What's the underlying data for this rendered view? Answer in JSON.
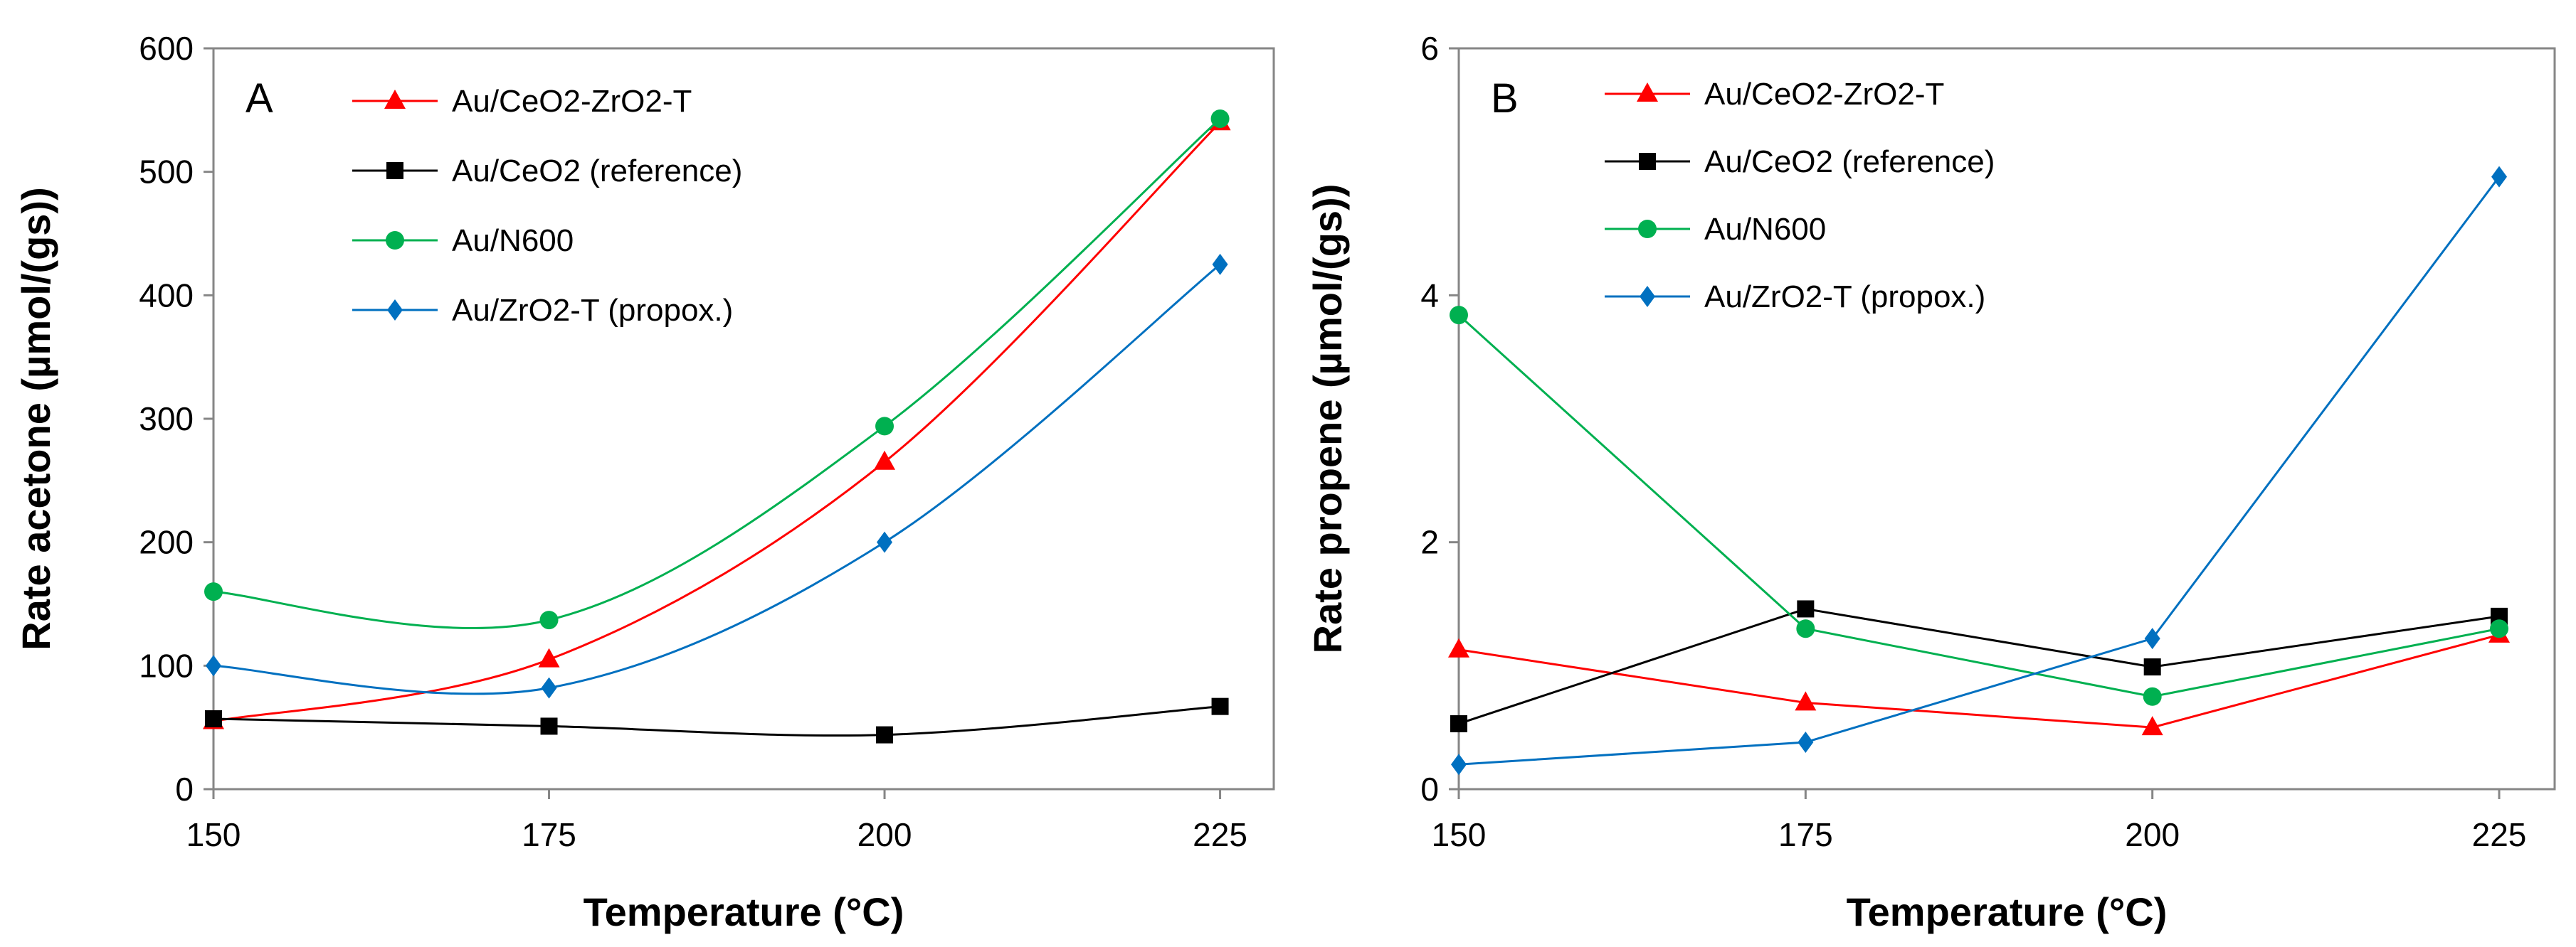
{
  "chart_data": [
    {
      "type": "line",
      "panel_label": "A",
      "xlabel": "Temperature (°C)",
      "ylabel": "Rate acetone (µmol/(gs))",
      "x": [
        150,
        175,
        200,
        225
      ],
      "x_tick_labels": [
        "150",
        "175",
        "200",
        "225"
      ],
      "xlim": [
        150,
        229
      ],
      "ylim": [
        0,
        600
      ],
      "y_ticks": [
        0,
        100,
        200,
        300,
        400,
        500,
        600
      ],
      "y_tick_labels": [
        "0",
        "100",
        "200",
        "300",
        "400",
        "500",
        "600"
      ],
      "legend_position": "top-left",
      "smooth": true,
      "series": [
        {
          "name": "Au/CeO2-ZrO2-T",
          "color": "#ff0000",
          "marker": "triangle",
          "values": [
            55,
            105,
            265,
            540
          ]
        },
        {
          "name": "Au/CeO2 (reference)",
          "color": "#000000",
          "marker": "square",
          "values": [
            57,
            51,
            44,
            67
          ]
        },
        {
          "name": "Au/N600",
          "color": "#00b050",
          "marker": "circle",
          "values": [
            160,
            137,
            294,
            543
          ]
        },
        {
          "name": "Au/ZrO2-T (propox.)",
          "color": "#0070c0",
          "marker": "diamond",
          "values": [
            100,
            82,
            200,
            425
          ]
        }
      ]
    },
    {
      "type": "line",
      "panel_label": "B",
      "xlabel": "Temperature (°C)",
      "ylabel": "Rate propene (µmol/(gs))",
      "x": [
        150,
        175,
        200,
        225
      ],
      "x_tick_labels": [
        "150",
        "175",
        "200",
        "225"
      ],
      "xlim": [
        150,
        229
      ],
      "ylim": [
        0,
        6
      ],
      "y_ticks": [
        0,
        2,
        4,
        6
      ],
      "y_tick_labels": [
        "0",
        "2",
        "4",
        "6"
      ],
      "legend_position": "top-left",
      "smooth": false,
      "series": [
        {
          "name": "Au/CeO2-ZrO2-T",
          "color": "#ff0000",
          "marker": "triangle",
          "values": [
            1.13,
            0.7,
            0.5,
            1.25
          ]
        },
        {
          "name": "Au/CeO2 (reference)",
          "color": "#000000",
          "marker": "square",
          "values": [
            0.53,
            1.46,
            0.99,
            1.4
          ]
        },
        {
          "name": "Au/N600",
          "color": "#00b050",
          "marker": "circle",
          "values": [
            3.84,
            1.3,
            0.75,
            1.3
          ]
        },
        {
          "name": "Au/ZrO2-T (propox.)",
          "color": "#0070c0",
          "marker": "diamond",
          "values": [
            0.2,
            0.38,
            1.22,
            4.96
          ]
        }
      ]
    }
  ]
}
